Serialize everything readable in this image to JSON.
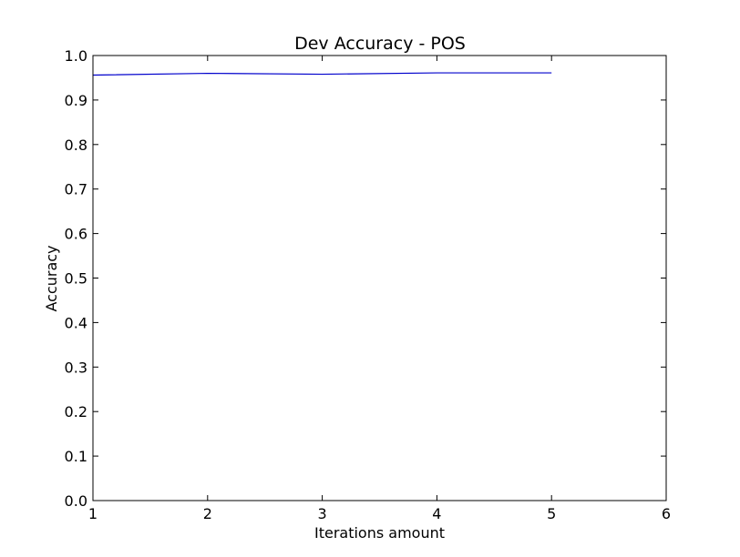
{
  "chart_data": {
    "type": "line",
    "title": "Dev Accuracy - POS",
    "xlabel": "Iterations amount",
    "ylabel": "Accuracy",
    "xlim": [
      1,
      6
    ],
    "ylim": [
      0.0,
      1.0
    ],
    "x_ticks": [
      "1",
      "2",
      "3",
      "4",
      "5",
      "6"
    ],
    "y_ticks": [
      "0.0",
      "0.1",
      "0.2",
      "0.3",
      "0.4",
      "0.5",
      "0.6",
      "0.7",
      "0.8",
      "0.9",
      "1.0"
    ],
    "grid": false,
    "series": [
      {
        "color": "#0000cc",
        "x": [
          1,
          2,
          3,
          4,
          5
        ],
        "y": [
          0.956,
          0.96,
          0.958,
          0.961,
          0.961
        ]
      }
    ]
  }
}
